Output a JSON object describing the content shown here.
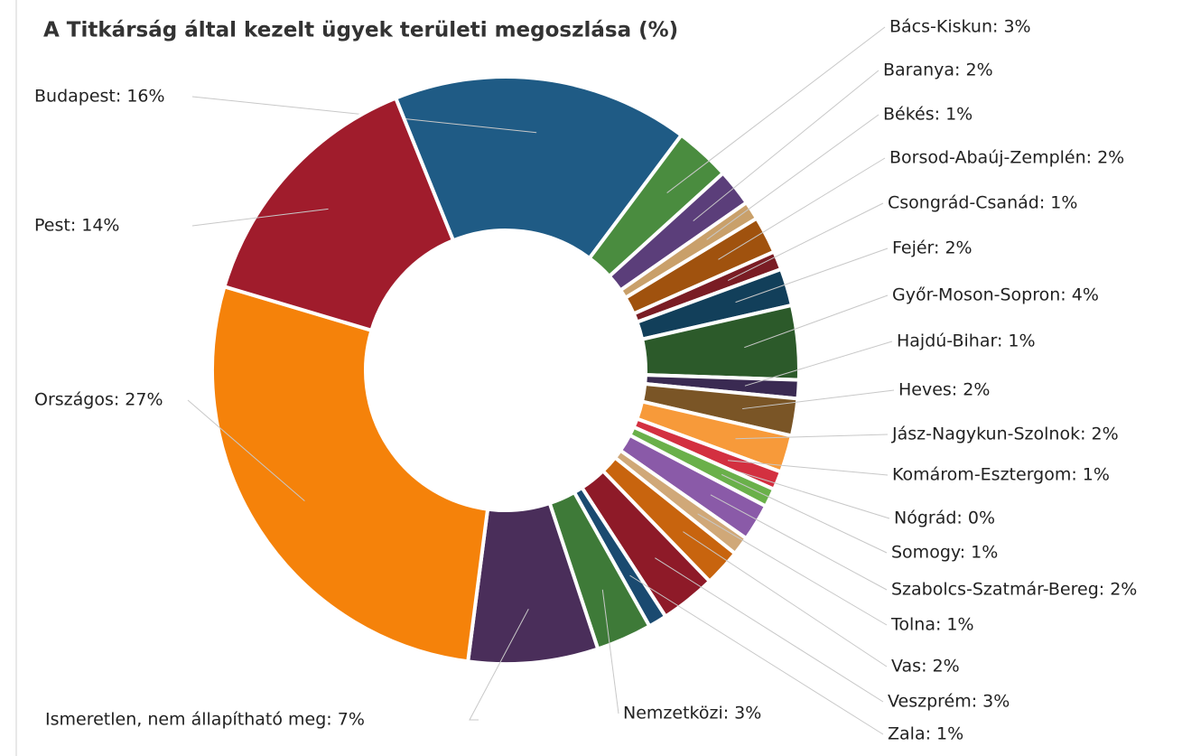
{
  "chart_data": {
    "type": "donut",
    "title": "A Titkárság által kezelt ügyek területi megoszlása (%)",
    "values": [
      16,
      3,
      2,
      1,
      2,
      1,
      2,
      4,
      1,
      2,
      2,
      1,
      0,
      1,
      2,
      1,
      2,
      3,
      1,
      3,
      7,
      27,
      14
    ],
    "value_labels": [
      "Budapest: 16%",
      "Bács-Kiskun: 3%",
      "Baranya: 2%",
      "Békés: 1%",
      "Borsod-Abaúj-Zemplén: 2%",
      "Csongrád-Csanád: 1%",
      "Fejér: 2%",
      "Győr-Moson-Sopron: 4%",
      "Hajdú-Bihar: 1%",
      "Heves: 2%",
      "Jász-Nagykun-Szolnok: 2%",
      "Komárom-Esztergom: 1%",
      "Nógrád: 0%",
      "Somogy: 1%",
      "Szabolcs-Szatmár-Bereg: 2%",
      "Tolna: 1%",
      "Vas: 2%",
      "Veszprém: 3%",
      "Zala: 1%",
      "Nemzetközi: 3%",
      "Ismeretlen, nem állapítható meg: 7%",
      "Országos: 27%",
      "Pest: 14%"
    ],
    "colors": [
      "#1f5b85",
      "#4a8c3f",
      "#5b3e7a",
      "#c9a06a",
      "#a0520e",
      "#7a1c24",
      "#123f5a",
      "#2c5a2a",
      "#3a2a52",
      "#7a5526",
      "#f79a3a",
      "#d33040",
      "#4a90c8",
      "#6ab04a",
      "#8a5aa8",
      "#d0a878",
      "#c8640e",
      "#8e1a28",
      "#1a4a70",
      "#3e7a38",
      "#4a2e5a",
      "#f5820a",
      "#a01c2c"
    ]
  }
}
